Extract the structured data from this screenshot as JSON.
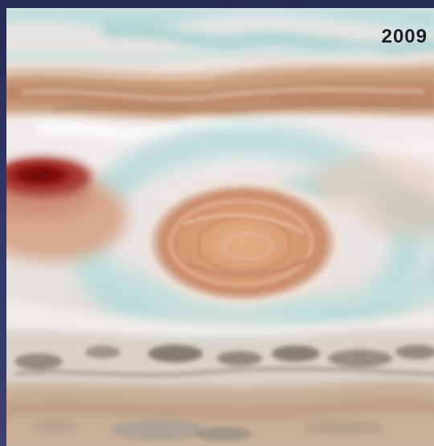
{
  "image": {
    "year_label": "2009",
    "colors": {
      "cloud_white": "#e9e7e6",
      "band_tan": "#c89a77",
      "great_red_spot": "#d79b73",
      "red_spot_jr": "#8a0c0c",
      "teal_haze": "#a8d3cf",
      "dark_belt": "#7b7468",
      "background_edge": "#2b3060"
    }
  }
}
